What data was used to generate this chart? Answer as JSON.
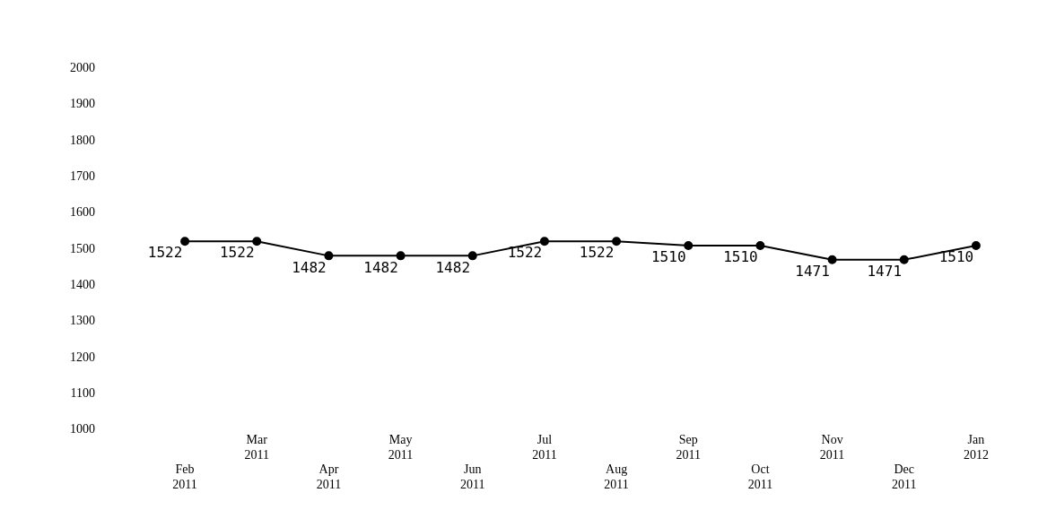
{
  "chart_data": {
    "type": "line",
    "categories": [
      "Feb 2011",
      "Mar 2011",
      "Apr 2011",
      "May 2011",
      "Jun 2011",
      "Jul 2011",
      "Aug 2011",
      "Sep 2011",
      "Oct 2011",
      "Nov 2011",
      "Dec 2011",
      "Jan 2012"
    ],
    "series": [
      {
        "color": "#000000",
        "values": [
          1522,
          1522,
          1482,
          1482,
          1482,
          1522,
          1522,
          1510,
          1510,
          1471,
          1471,
          1510
        ]
      }
    ],
    "ylim": [
      1000,
      2000
    ],
    "yticks": [
      1000,
      1100,
      1200,
      1300,
      1400,
      1500,
      1600,
      1700,
      1800,
      1900,
      2000
    ],
    "grid": false,
    "legend": false,
    "marker": "circle",
    "line_style": "solid",
    "data_labels": true
  }
}
